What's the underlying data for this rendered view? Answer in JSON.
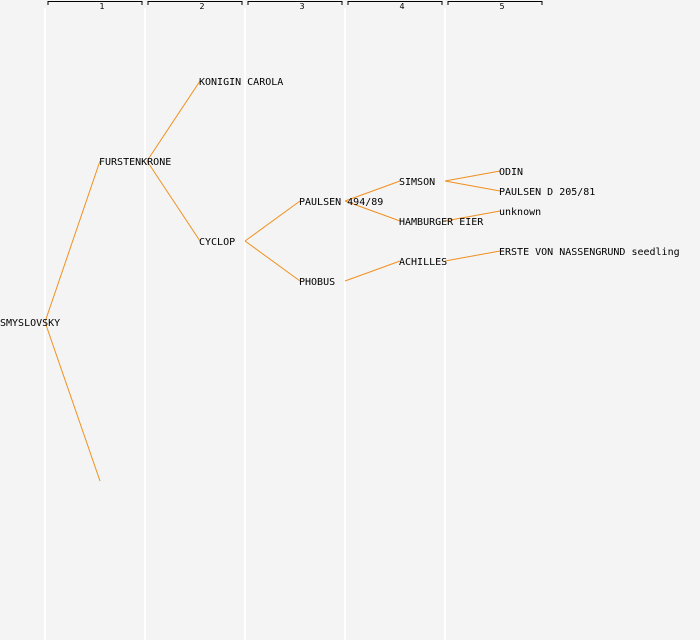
{
  "columns": [
    "1",
    "2",
    "3",
    "4",
    "5"
  ],
  "colors": {
    "background": "#f4f4f4",
    "edge": "#f0901e",
    "column_line": "#ffffff"
  },
  "nodes": {
    "root": "SMYSLOVSKY",
    "g1_top": "FURSTENKRONE",
    "g2_konigin": "KONIGIN CAROLA",
    "g2_cyclop": "CYCLOP",
    "g3_paulsen": "PAULSEN 494/89",
    "g3_phobus": "PHOBUS",
    "g4_simson": "SIMSON",
    "g4_hamburger": "HAMBURGER EIER",
    "g4_achilles": "ACHILLES",
    "g5_odin": "ODIN",
    "g5_paulsen_d": "PAULSEN D 205/81",
    "g5_unknown": "unknown",
    "g5_erste": "ERSTE VON NASSENGRUND seedling"
  }
}
